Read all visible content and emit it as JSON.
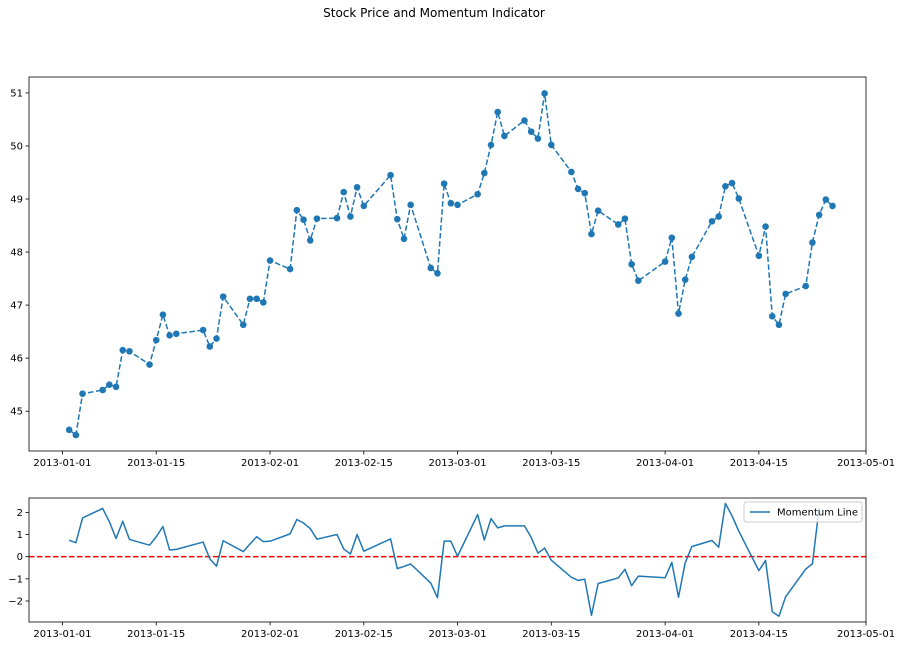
{
  "figure": {
    "suptitle": "Stock Price and Momentum Indicator"
  },
  "colors": {
    "series": "#1f77b4",
    "zero_line": "#ff0000",
    "axes": "#000000",
    "legend_border": "#cccccc"
  },
  "chart_data": [
    {
      "type": "line",
      "name": "price",
      "line_style": "dashed",
      "markers": "circle",
      "title": "",
      "xlabel": "",
      "ylabel": "",
      "x_type": "date",
      "xlim": [
        "2012-12-27",
        "2013-05-01"
      ],
      "ylim": [
        44.25,
        51.3
      ],
      "xticks": [
        "2013-01-01",
        "2013-01-15",
        "2013-02-01",
        "2013-02-15",
        "2013-03-01",
        "2013-03-15",
        "2013-04-01",
        "2013-04-15",
        "2013-05-01"
      ],
      "yticks": [
        45,
        46,
        47,
        48,
        49,
        50,
        51
      ],
      "grid": false,
      "x": [
        "2013-01-02",
        "2013-01-03",
        "2013-01-04",
        "2013-01-07",
        "2013-01-08",
        "2013-01-09",
        "2013-01-10",
        "2013-01-11",
        "2013-01-14",
        "2013-01-15",
        "2013-01-16",
        "2013-01-17",
        "2013-01-18",
        "2013-01-22",
        "2013-01-23",
        "2013-01-24",
        "2013-01-25",
        "2013-01-28",
        "2013-01-29",
        "2013-01-30",
        "2013-01-31",
        "2013-02-01",
        "2013-02-04",
        "2013-02-05",
        "2013-02-06",
        "2013-02-07",
        "2013-02-08",
        "2013-02-11",
        "2013-02-12",
        "2013-02-13",
        "2013-02-14",
        "2013-02-15",
        "2013-02-19",
        "2013-02-20",
        "2013-02-21",
        "2013-02-22",
        "2013-02-25",
        "2013-02-26",
        "2013-02-27",
        "2013-02-28",
        "2013-03-01",
        "2013-03-04",
        "2013-03-05",
        "2013-03-06",
        "2013-03-07",
        "2013-03-08",
        "2013-03-11",
        "2013-03-12",
        "2013-03-13",
        "2013-03-14",
        "2013-03-15",
        "2013-03-18",
        "2013-03-19",
        "2013-03-20",
        "2013-03-21",
        "2013-03-22",
        "2013-03-25",
        "2013-03-26",
        "2013-03-27",
        "2013-03-28",
        "2013-04-01",
        "2013-04-02",
        "2013-04-03",
        "2013-04-04",
        "2013-04-05",
        "2013-04-08",
        "2013-04-09",
        "2013-04-10",
        "2013-04-11",
        "2013-04-12",
        "2013-04-15",
        "2013-04-16",
        "2013-04-17",
        "2013-04-18",
        "2013-04-19",
        "2013-04-22",
        "2013-04-23",
        "2013-04-24",
        "2013-04-25",
        "2013-04-26"
      ],
      "y": [
        44.65,
        44.55,
        45.33,
        45.4,
        45.5,
        45.46,
        46.15,
        46.13,
        45.88,
        46.34,
        46.82,
        46.43,
        46.46,
        46.53,
        46.22,
        46.37,
        47.16,
        46.63,
        47.12,
        47.12,
        47.05,
        47.84,
        47.68,
        48.79,
        48.61,
        48.22,
        48.63,
        48.64,
        49.13,
        48.67,
        49.22,
        48.87,
        49.45,
        48.62,
        48.25,
        48.89,
        47.7,
        47.6,
        49.29,
        48.92,
        48.89,
        49.09,
        49.49,
        50.02,
        50.64,
        50.19,
        50.48,
        50.27,
        50.14,
        50.99,
        50.02,
        49.51,
        49.19,
        49.11,
        48.34,
        48.78,
        48.52,
        48.63,
        47.77,
        47.46,
        47.82,
        48.27,
        46.84,
        47.48,
        47.91,
        48.58,
        48.67,
        49.24,
        49.3,
        49.01,
        47.93,
        48.48,
        46.79,
        46.63,
        47.21,
        47.36,
        48.18,
        48.7,
        48.99,
        48.87
      ]
    },
    {
      "type": "line",
      "name": "momentum",
      "title": "",
      "xlabel": "",
      "ylabel": "",
      "x_type": "date",
      "xlim": [
        "2012-12-27",
        "2013-05-01"
      ],
      "ylim": [
        -2.95,
        2.65
      ],
      "xticks": [
        "2013-01-01",
        "2013-01-15",
        "2013-02-01",
        "2013-02-15",
        "2013-03-01",
        "2013-03-15",
        "2013-04-01",
        "2013-04-15",
        "2013-05-01"
      ],
      "yticks": [
        -2,
        -1,
        0,
        1,
        2
      ],
      "grid": false,
      "legend": {
        "position": "top-right",
        "entries": [
          "Momentum Line"
        ]
      },
      "reference_line": {
        "y": 0,
        "style": "dashed"
      },
      "series": [
        {
          "name": "Momentum Line",
          "x": [
            "2013-01-02",
            "2013-01-03",
            "2013-01-04",
            "2013-01-07",
            "2013-01-08",
            "2013-01-09",
            "2013-01-10",
            "2013-01-11",
            "2013-01-14",
            "2013-01-15",
            "2013-01-16",
            "2013-01-17",
            "2013-01-18",
            "2013-01-22",
            "2013-01-23",
            "2013-01-24",
            "2013-01-25",
            "2013-01-28",
            "2013-01-29",
            "2013-01-30",
            "2013-01-31",
            "2013-02-01",
            "2013-02-04",
            "2013-02-05",
            "2013-02-06",
            "2013-02-07",
            "2013-02-08",
            "2013-02-11",
            "2013-02-12",
            "2013-02-13",
            "2013-02-14",
            "2013-02-15",
            "2013-02-19",
            "2013-02-20",
            "2013-02-21",
            "2013-02-22",
            "2013-02-25",
            "2013-02-26",
            "2013-02-27",
            "2013-02-28",
            "2013-03-01",
            "2013-03-04",
            "2013-03-05",
            "2013-03-06",
            "2013-03-07",
            "2013-03-08",
            "2013-03-11",
            "2013-03-12",
            "2013-03-13",
            "2013-03-14",
            "2013-03-15",
            "2013-03-18",
            "2013-03-19",
            "2013-03-20",
            "2013-03-21",
            "2013-03-22",
            "2013-03-25",
            "2013-03-26",
            "2013-03-27",
            "2013-03-28",
            "2013-04-01",
            "2013-04-02",
            "2013-04-03",
            "2013-04-04",
            "2013-04-05",
            "2013-04-08",
            "2013-04-09",
            "2013-04-10",
            "2013-04-11",
            "2013-04-12",
            "2013-04-15",
            "2013-04-16",
            "2013-04-17",
            "2013-04-18",
            "2013-04-19",
            "2013-04-22",
            "2013-04-23",
            "2013-04-24"
          ],
          "y": [
            0.74,
            0.63,
            1.75,
            2.18,
            1.58,
            0.82,
            1.6,
            0.78,
            0.52,
            0.9,
            1.36,
            0.3,
            0.33,
            0.66,
            -0.1,
            -0.43,
            0.72,
            0.23,
            0.57,
            0.9,
            0.68,
            0.7,
            1.03,
            1.68,
            1.52,
            1.27,
            0.79,
            1.0,
            0.35,
            0.12,
            1.0,
            0.25,
            0.8,
            -0.54,
            -0.44,
            -0.33,
            -1.19,
            -1.85,
            0.7,
            0.7,
            0.02,
            1.9,
            0.75,
            1.72,
            1.3,
            1.39,
            1.39,
            0.87,
            0.16,
            0.39,
            -0.16,
            -0.93,
            -1.07,
            -1.02,
            -2.65,
            -1.21,
            -0.96,
            -0.57,
            -1.31,
            -0.88,
            -0.95,
            -0.26,
            -1.83,
            -0.27,
            0.46,
            0.73,
            0.43,
            2.4,
            1.84,
            1.15,
            -0.63,
            -0.17,
            -2.49,
            -2.69,
            -1.81,
            -0.56,
            -0.32,
            2.2
          ]
        }
      ]
    }
  ]
}
